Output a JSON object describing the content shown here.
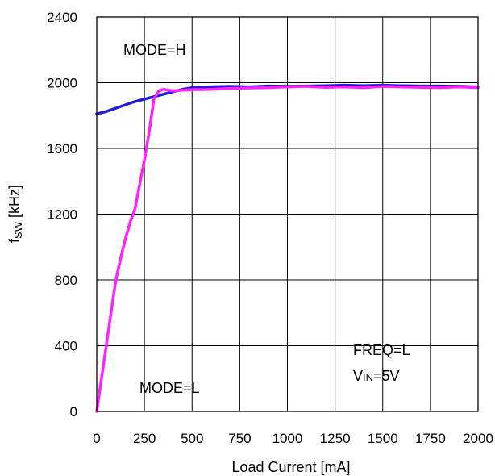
{
  "chart_data": {
    "type": "line",
    "xlabel": "Load Current [mA]",
    "ylabel": {
      "main": "f",
      "sub": "SW",
      "unit": " [kHz]"
    },
    "xlim": [
      0,
      2000
    ],
    "ylim": [
      0,
      2400
    ],
    "x_ticks": [
      "0",
      "250",
      "500",
      "750",
      "1000",
      "1250",
      "1500",
      "1750",
      "2000"
    ],
    "y_ticks": [
      "0",
      "400",
      "800",
      "1200",
      "1600",
      "2000",
      "2400"
    ],
    "grid": true,
    "annotations": {
      "mode_h": "MODE=H",
      "mode_l": "MODE=L",
      "freq": "FREQ=L",
      "vin": {
        "main": "V",
        "sub": "IN",
        "rest": "=5V"
      }
    },
    "series": [
      {
        "color": "#1f1fd6",
        "x": [
          0,
          50,
          100,
          150,
          200,
          250,
          300,
          350,
          400,
          450,
          500,
          600,
          700,
          800,
          900,
          1000,
          1100,
          1200,
          1300,
          1400,
          1500,
          1600,
          1700,
          1800,
          1900,
          2000
        ],
        "y": [
          1810,
          1825,
          1845,
          1865,
          1885,
          1900,
          1915,
          1930,
          1945,
          1960,
          1970,
          1975,
          1978,
          1975,
          1980,
          1978,
          1980,
          1982,
          1985,
          1982,
          1985,
          1982,
          1980,
          1980,
          1978,
          1975
        ]
      },
      {
        "color": "#ff22ff",
        "x": [
          0,
          25,
          50,
          75,
          100,
          125,
          150,
          175,
          200,
          225,
          250,
          275,
          300,
          325,
          350,
          400,
          450,
          500,
          600,
          700,
          800,
          900,
          1000,
          1100,
          1200,
          1300,
          1400,
          1500,
          1600,
          1700,
          1800,
          1900,
          2000
        ],
        "y": [
          0,
          200,
          400,
          600,
          800,
          930,
          1050,
          1150,
          1230,
          1380,
          1530,
          1700,
          1900,
          1950,
          1960,
          1950,
          1955,
          1958,
          1960,
          1965,
          1968,
          1970,
          1975,
          1978,
          1972,
          1975,
          1970,
          1978,
          1975,
          1972,
          1970,
          1975,
          1970
        ]
      }
    ]
  }
}
